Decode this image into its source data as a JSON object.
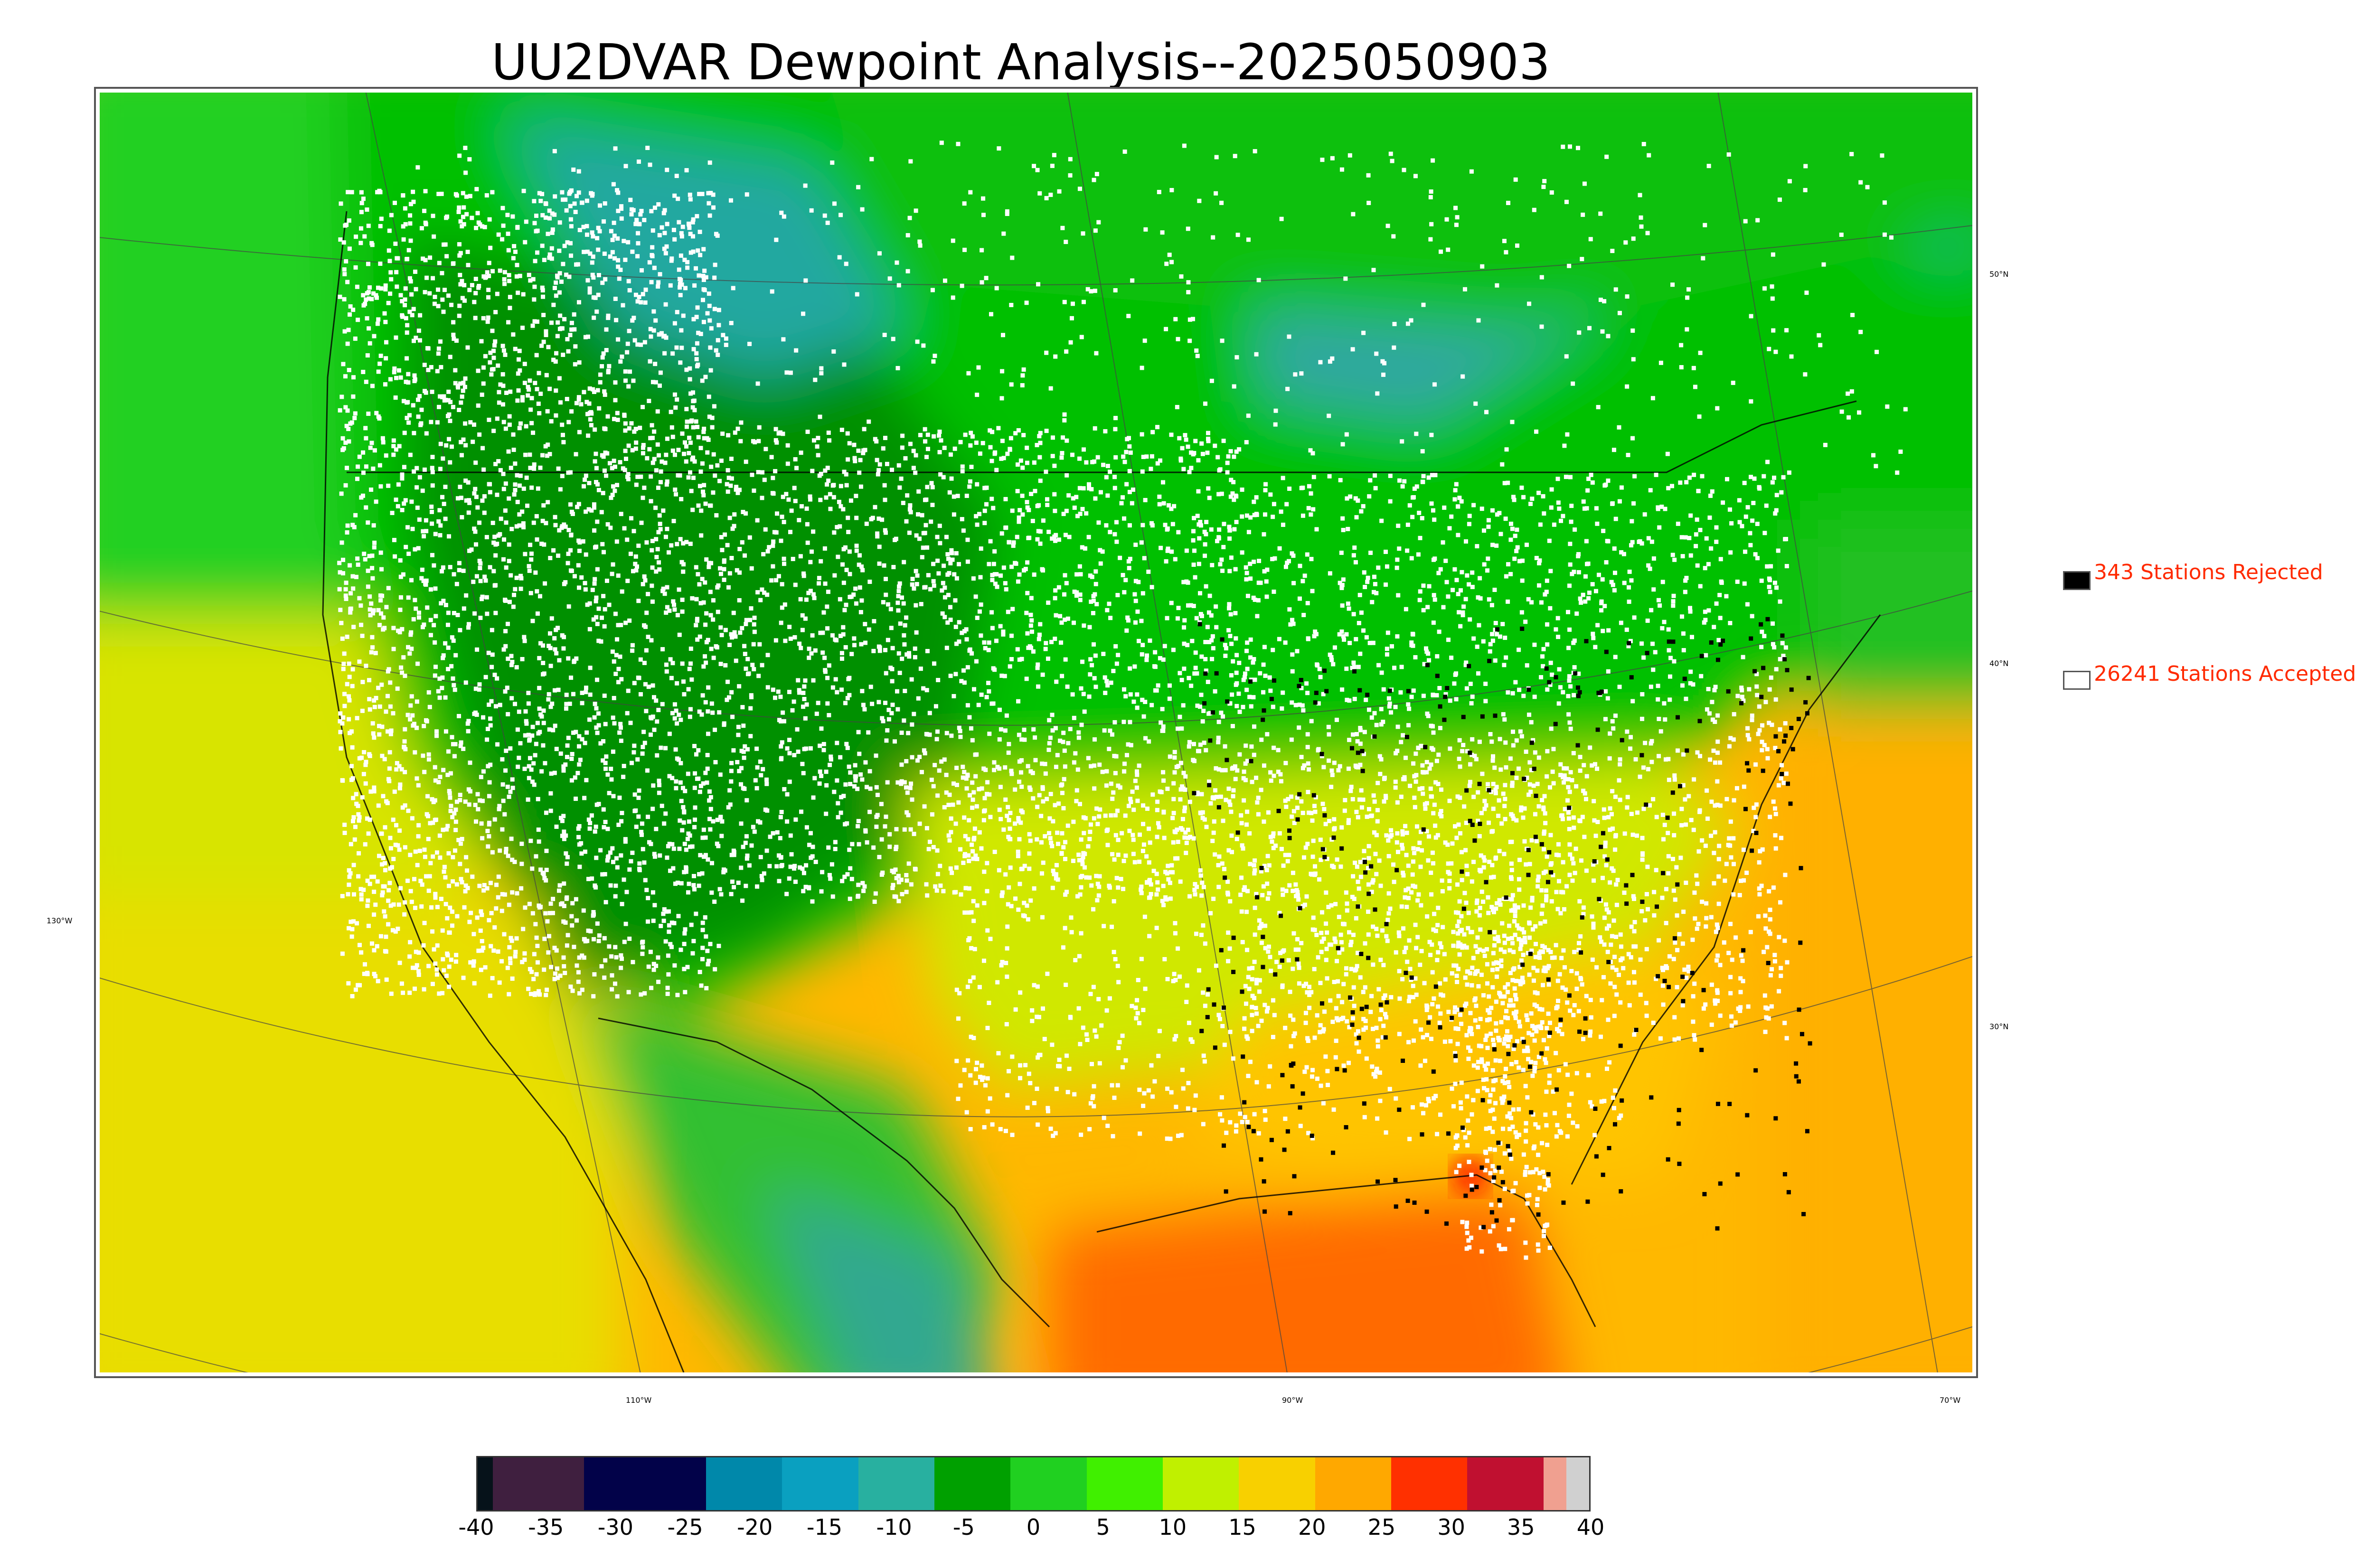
{
  "title": "UU2DVAR Dewpoint Analysis--2025050903",
  "legend": {
    "rejected": {
      "label": "343 Stations Rejected",
      "color": "#000000"
    },
    "accepted": {
      "label": "26241 Stations Accepted",
      "color": "#ffffff"
    }
  },
  "lat_labels": [
    "50°N",
    "40°N",
    "30°N"
  ],
  "lon_labels": [
    "130°W",
    "110°W",
    "90°W",
    "70°W"
  ],
  "colorbar": {
    "ticks": [
      "-40",
      "-35",
      "-30",
      "-25",
      "-20",
      "-15",
      "-10",
      "-5",
      "0",
      "5",
      "10",
      "15",
      "20",
      "25",
      "30",
      "35",
      "40"
    ],
    "colors": [
      "#06121a",
      "#3f1f3f",
      "#3f1f3f",
      "#020249",
      "#020249",
      "#0088aa",
      "#0aa0c0",
      "#28b0a0",
      "#00a000",
      "#20d020",
      "#40f000",
      "#c0f000",
      "#f8d000",
      "#ffa800",
      "#ff3000",
      "#c01030",
      "#f0a090",
      "#d0d0d0"
    ]
  },
  "map": {
    "colors": {
      "ocean_warm": "#ffb800",
      "ocean_hot": "#ff6a00",
      "pacific_mid": "#e8e400",
      "pacific_north": "#20d020",
      "land_green": "#00c000",
      "land_dark": "#009000",
      "canada_teal": "#20a8a0",
      "south_yellow": "#d8e800",
      "southeast_orange": "#ffc400",
      "station_accepted": "#ffffff",
      "station_rejected": "#000000",
      "border_line": "#000000"
    }
  }
}
